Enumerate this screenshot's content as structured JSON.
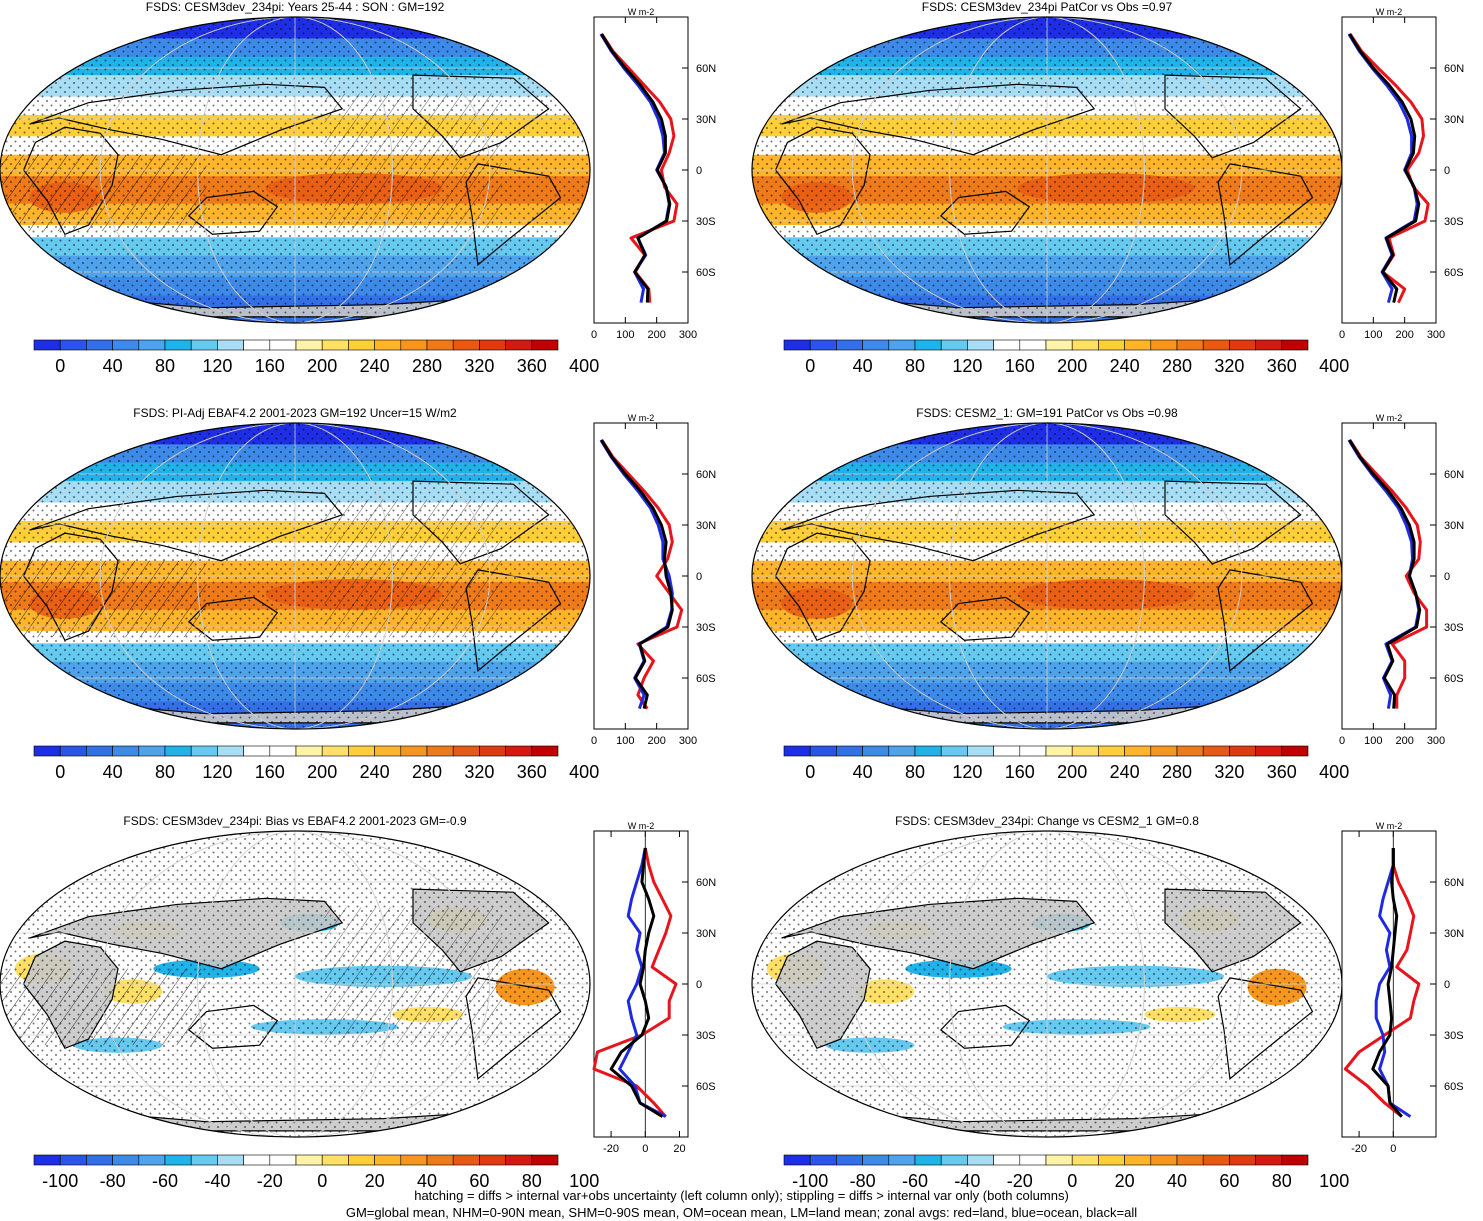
{
  "footer": {
    "line1": "hatching = diffs > internal var+obs uncertainty (left column only); stippling = diffs > internal var only (both columns)",
    "line2": "GM=global mean, NHM=0-90N mean, SHM=0-90S mean, OM=ocean mean, LM=land mean; zonal avgs: red=land, blue=ocean, black=all"
  },
  "colors": {
    "land_zonal": "#e8141c",
    "ocean_zonal": "#1f2ae0",
    "all_zonal": "#000000",
    "land_mask": "#c8c8c8",
    "abs_scale": [
      "#1e2ee6",
      "#2b55ea",
      "#3370e8",
      "#3d8ae8",
      "#4ea3ec",
      "#1fb3ea",
      "#66c9f0",
      "#a8def5",
      "#ffffff",
      "#ffffff",
      "#fff3a8",
      "#ffe066",
      "#ffcf3a",
      "#ffb52a",
      "#f6961f",
      "#ef7a1a",
      "#e85a14",
      "#e03a10",
      "#d41a10",
      "#c00000"
    ],
    "diff_scale": [
      "#1e2ee6",
      "#2b55ea",
      "#3370e8",
      "#3d8ae8",
      "#4ea3ec",
      "#1fb3ea",
      "#66c9f0",
      "#a8def5",
      "#ffffff",
      "#ffffff",
      "#fff3a8",
      "#ffe066",
      "#ffcf3a",
      "#ffb52a",
      "#f6961f",
      "#ef7a1a",
      "#e85a14",
      "#e03a10",
      "#d41a10",
      "#c00000"
    ]
  },
  "chart_data": [
    {
      "type": "heatmap",
      "panel": "map-1",
      "title": "FSDS: CESM3dev_234pi: Years 25-44 : SON : GM=192",
      "colorbar_labels": [
        "0",
        "40",
        "80",
        "120",
        "160",
        "200",
        "240",
        "280",
        "320",
        "360",
        "400"
      ],
      "colorbar_range": [
        0,
        400
      ],
      "zonal": {
        "type": "line",
        "unit": "W m-2",
        "x_ticks": [
          "0",
          "100",
          "200",
          "300"
        ],
        "xlim": [
          0,
          300
        ],
        "y_ticks": [
          "60N",
          "30N",
          "0",
          "30S",
          "60S"
        ],
        "ylim": [
          -90,
          90
        ],
        "lat": [
          -78,
          -70,
          -60,
          -50,
          -40,
          -30,
          -20,
          -10,
          0,
          10,
          20,
          30,
          40,
          50,
          60,
          70,
          80
        ],
        "series": [
          {
            "name": "land",
            "color_key": "land_zonal",
            "values": [
              178,
              175,
              132,
              162,
              118,
              255,
              265,
              225,
              215,
              240,
              255,
              245,
              210,
              160,
              110,
              60,
              25
            ]
          },
          {
            "name": "ocean",
            "color_key": "ocean_zonal",
            "values": [
              150,
              158,
              130,
              165,
              140,
              230,
              240,
              230,
              200,
              225,
              220,
              205,
              180,
              140,
              95,
              55,
              22
            ]
          },
          {
            "name": "all",
            "color_key": "all_zonal",
            "values": [
              170,
              172,
              130,
              163,
              140,
              232,
              242,
              230,
              202,
              228,
              228,
              215,
              188,
              148,
              100,
              57,
              24
            ]
          }
        ]
      }
    },
    {
      "type": "heatmap",
      "panel": "map-2",
      "title": "FSDS: CESM3dev_234pi PatCor vs Obs =0.97",
      "colorbar_labels": [
        "0",
        "40",
        "80",
        "120",
        "160",
        "200",
        "240",
        "280",
        "320",
        "360",
        "400"
      ],
      "colorbar_range": [
        0,
        400
      ],
      "zonal": {
        "type": "line",
        "unit": "W m-2",
        "x_ticks": [
          "0",
          "100",
          "200",
          "300"
        ],
        "xlim": [
          0,
          300
        ],
        "y_ticks": [
          "60N",
          "30N",
          "0",
          "30S",
          "60S"
        ],
        "ylim": [
          -90,
          90
        ],
        "lat": [
          -78,
          -70,
          -60,
          -50,
          -40,
          -30,
          -20,
          -10,
          0,
          10,
          20,
          30,
          40,
          50,
          60,
          70,
          80
        ],
        "series": [
          {
            "name": "land",
            "color_key": "land_zonal",
            "values": [
              180,
              200,
              130,
              165,
              150,
              265,
              275,
              228,
              208,
              245,
              260,
              255,
              220,
              170,
              115,
              62,
              26
            ]
          },
          {
            "name": "ocean",
            "color_key": "ocean_zonal",
            "values": [
              148,
              160,
              128,
              160,
              140,
              230,
              240,
              230,
              200,
              222,
              222,
              208,
              182,
              142,
              96,
              55,
              22
            ]
          },
          {
            "name": "all",
            "color_key": "all_zonal",
            "values": [
              165,
              175,
              130,
              162,
              142,
              235,
              245,
              230,
              202,
              228,
              232,
              220,
              192,
              150,
              100,
              58,
              24
            ]
          }
        ]
      }
    },
    {
      "type": "heatmap",
      "panel": "map-3",
      "title": "FSDS: PI-Adj EBAF4.2 2001-2023 GM=192 Uncer=15 W/m2",
      "colorbar_labels": [
        "0",
        "40",
        "80",
        "120",
        "160",
        "200",
        "240",
        "280",
        "320",
        "360",
        "400"
      ],
      "colorbar_range": [
        0,
        400
      ],
      "zonal": {
        "type": "line",
        "unit": "W m-2",
        "x_ticks": [
          "0",
          "100",
          "200",
          "300"
        ],
        "xlim": [
          0,
          300
        ],
        "y_ticks": [
          "60N",
          "30N",
          "0",
          "30S",
          "60S"
        ],
        "ylim": [
          -90,
          90
        ],
        "lat": [
          -78,
          -70,
          -60,
          -50,
          -40,
          -30,
          -20,
          -10,
          0,
          10,
          20,
          30,
          40,
          50,
          60,
          70,
          80
        ],
        "series": [
          {
            "name": "land",
            "color_key": "land_zonal",
            "values": [
              170,
              140,
              160,
              190,
              140,
              265,
              280,
              240,
              200,
              235,
              250,
              240,
              205,
              160,
              110,
              60,
              25
            ]
          },
          {
            "name": "ocean",
            "color_key": "ocean_zonal",
            "values": [
              145,
              160,
              130,
              160,
              145,
              232,
              248,
              250,
              240,
              220,
              220,
              205,
              180,
              140,
              95,
              55,
              22
            ]
          },
          {
            "name": "all",
            "color_key": "all_zonal",
            "values": [
              160,
              170,
              132,
              162,
              146,
              236,
              250,
              245,
              230,
              225,
              230,
              215,
              188,
              148,
              100,
              57,
              24
            ]
          }
        ]
      }
    },
    {
      "type": "heatmap",
      "panel": "map-4",
      "title": "FSDS: CESM2_1: GM=191 PatCor vs Obs =0.98",
      "colorbar_labels": [
        "0",
        "40",
        "80",
        "120",
        "160",
        "200",
        "240",
        "280",
        "320",
        "360",
        "400"
      ],
      "colorbar_range": [
        0,
        400
      ],
      "zonal": {
        "type": "line",
        "unit": "W m-2",
        "x_ticks": [
          "0",
          "100",
          "200",
          "300"
        ],
        "xlim": [
          0,
          300
        ],
        "y_ticks": [
          "60N",
          "30N",
          "0",
          "30S",
          "60S"
        ],
        "ylim": [
          -90,
          90
        ],
        "lat": [
          -78,
          -70,
          -60,
          -50,
          -40,
          -30,
          -20,
          -10,
          0,
          10,
          20,
          30,
          40,
          50,
          60,
          70,
          80
        ],
        "series": [
          {
            "name": "land",
            "color_key": "land_zonal",
            "values": [
              175,
              175,
              200,
              200,
              160,
              270,
              270,
              230,
              205,
              245,
              250,
              240,
              205,
              160,
              110,
              60,
              25
            ]
          },
          {
            "name": "ocean",
            "color_key": "ocean_zonal",
            "values": [
              148,
              155,
              132,
              160,
              140,
              235,
              245,
              235,
              215,
              225,
              222,
              205,
              180,
              140,
              95,
              55,
              22
            ]
          },
          {
            "name": "all",
            "color_key": "all_zonal",
            "values": [
              165,
              168,
              135,
              162,
              145,
              238,
              248,
              235,
              215,
              230,
              230,
              215,
              188,
              148,
              100,
              57,
              24
            ]
          }
        ]
      }
    },
    {
      "type": "heatmap",
      "panel": "map-5",
      "title": "FSDS: CESM3dev_234pi: Bias vs EBAF4.2 2001-2023  GM=-0.9",
      "colorbar_labels": [
        "-100",
        "-80",
        "-60",
        "-40",
        "-20",
        "0",
        "20",
        "40",
        "60",
        "80",
        "100"
      ],
      "colorbar_range": [
        -100,
        100
      ],
      "zonal": {
        "type": "line",
        "unit": "W m-2",
        "x_ticks": [
          "-20",
          "0",
          "20"
        ],
        "xlim": [
          -30,
          25
        ],
        "y_ticks": [
          "60N",
          "30N",
          "0",
          "30S",
          "60S"
        ],
        "ylim": [
          -90,
          90
        ],
        "lat": [
          -78,
          -70,
          -60,
          -50,
          -40,
          -30,
          -20,
          -10,
          0,
          10,
          20,
          30,
          40,
          50,
          60,
          70,
          80
        ],
        "series": [
          {
            "name": "land",
            "color_key": "land_zonal",
            "values": [
              12,
              5,
              -5,
              -30,
              -28,
              -2,
              14,
              14,
              18,
              4,
              8,
              12,
              15,
              10,
              5,
              2,
              0
            ]
          },
          {
            "name": "ocean",
            "color_key": "ocean_zonal",
            "values": [
              12,
              -3,
              -6,
              -15,
              -10,
              -5,
              -8,
              -10,
              -5,
              -2,
              -5,
              -3,
              -10,
              -8,
              -5,
              -2,
              0
            ]
          },
          {
            "name": "all",
            "color_key": "all_zonal",
            "values": [
              10,
              -3,
              -8,
              -20,
              -14,
              -2,
              2,
              0,
              -3,
              -1,
              0,
              2,
              5,
              2,
              -2,
              -1,
              0
            ]
          }
        ]
      }
    },
    {
      "type": "heatmap",
      "panel": "map-6",
      "title": "FSDS: CESM3dev_234pi: Change vs CESM2_1 GM=0.8",
      "colorbar_labels": [
        "-100",
        "-80",
        "-60",
        "-40",
        "-20",
        "0",
        "20",
        "40",
        "60",
        "80",
        "100"
      ],
      "colorbar_range": [
        -100,
        100
      ],
      "zonal": {
        "type": "line",
        "unit": "W m-2",
        "x_ticks": [
          "-20",
          "0"
        ],
        "xlim": [
          -30,
          25
        ],
        "y_ticks": [
          "60N",
          "30N",
          "0",
          "30S",
          "60S"
        ],
        "ylim": [
          -90,
          90
        ],
        "lat": [
          -78,
          -70,
          -60,
          -50,
          -40,
          -30,
          -20,
          -10,
          0,
          10,
          20,
          30,
          40,
          50,
          60,
          70,
          80
        ],
        "series": [
          {
            "name": "land",
            "color_key": "land_zonal",
            "values": [
              5,
              -5,
              -15,
              -28,
              -20,
              -5,
              10,
              12,
              15,
              2,
              8,
              10,
              12,
              8,
              3,
              0,
              0
            ]
          },
          {
            "name": "ocean",
            "color_key": "ocean_zonal",
            "values": [
              10,
              -2,
              -3,
              -8,
              -5,
              -6,
              -10,
              -10,
              -8,
              -2,
              -4,
              -2,
              -8,
              -6,
              -3,
              0,
              0
            ]
          },
          {
            "name": "all",
            "color_key": "all_zonal",
            "values": [
              5,
              -2,
              -3,
              -12,
              -8,
              -2,
              -1,
              -2,
              -3,
              -1,
              0,
              1,
              2,
              0,
              -1,
              0,
              0
            ]
          }
        ]
      }
    }
  ]
}
